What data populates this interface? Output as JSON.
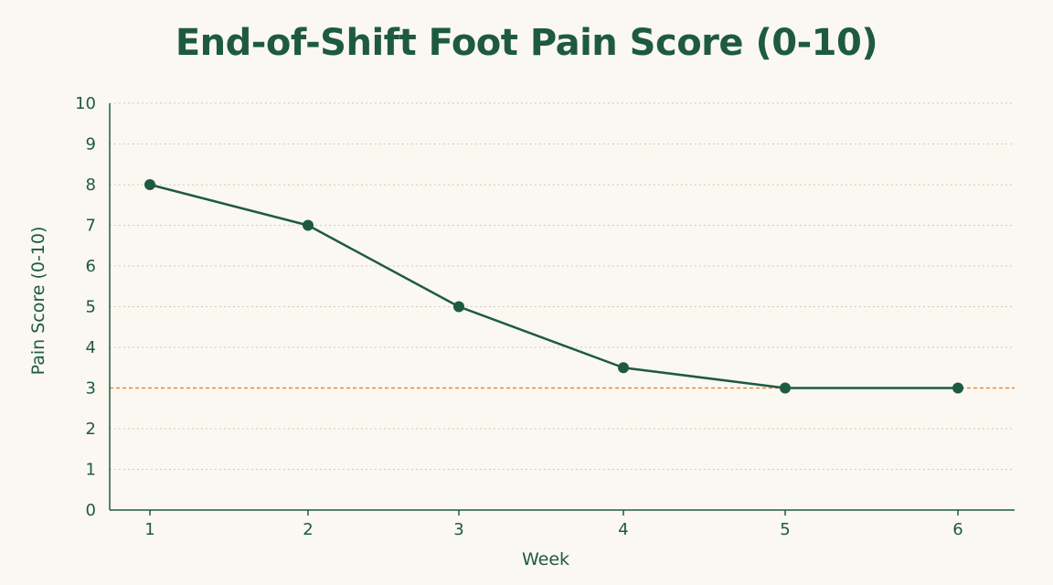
{
  "chart_data": {
    "type": "line",
    "title": "End-of-Shift Foot Pain Score (0-10)",
    "xlabel": "Week",
    "ylabel": "Pain Score (0-10)",
    "x": [
      1,
      2,
      3,
      4,
      5,
      6
    ],
    "series": [
      {
        "values": [
          8,
          7,
          5,
          3.5,
          3,
          3
        ]
      }
    ],
    "ylim": [
      0,
      10
    ],
    "yticks": [
      0,
      1,
      2,
      3,
      4,
      5,
      6,
      7,
      8,
      9,
      10
    ],
    "grid": "horizontal dotted",
    "reference_line": {
      "value": 3,
      "label": "3",
      "style": "dashed"
    },
    "colors": {
      "line": "#1e5a42",
      "text": "#1e5a42",
      "grid": "#c9cdc3",
      "reference": "#e07b2a",
      "background": "#faf8f0"
    }
  }
}
